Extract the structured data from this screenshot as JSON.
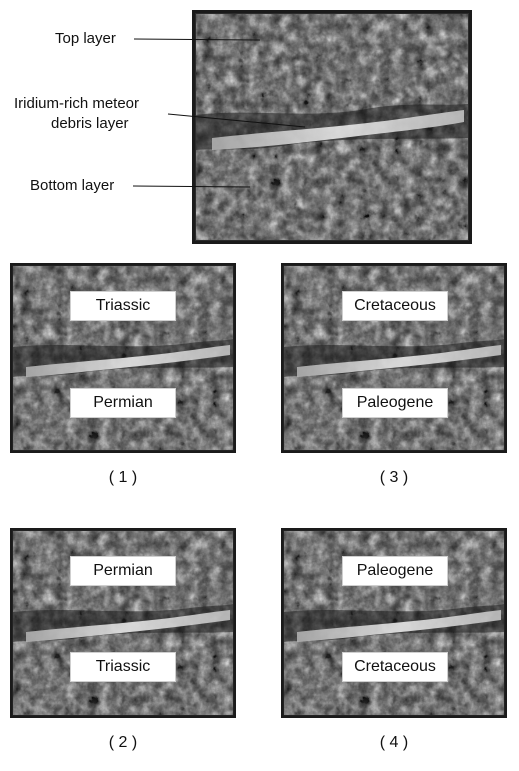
{
  "labels": {
    "top_layer": "Top layer",
    "iridium_line1": "Iridium-rich meteor",
    "iridium_line2": "debris layer",
    "bottom_layer": "Bottom layer"
  },
  "options": [
    {
      "caption": "( 1 )",
      "top": "Triassic",
      "bottom": "Permian"
    },
    {
      "caption": "( 2 )",
      "top": "Permian",
      "bottom": "Triassic"
    },
    {
      "caption": "( 3 )",
      "top": "Cretaceous",
      "bottom": "Paleogene"
    },
    {
      "caption": "( 4 )",
      "top": "Paleogene",
      "bottom": "Cretaceous"
    }
  ],
  "colors": {
    "rock_dark": "#2e2e2e",
    "rock_mid": "#7a7a7a",
    "rock_light": "#cfcfcf",
    "debris_band": "#e8e8e8"
  }
}
